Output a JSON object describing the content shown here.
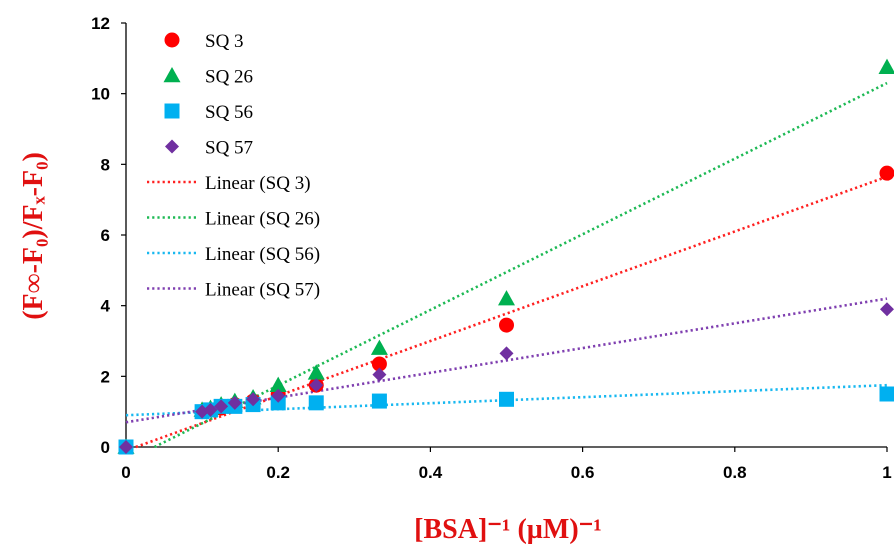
{
  "chart_data": {
    "type": "scatter",
    "title": "",
    "xlabel": "[BSA]⁻¹  (µM)⁻¹",
    "ylabel": "(F∞-F₀)/Fₓ-F₀)",
    "xlim": [
      0,
      1
    ],
    "ylim": [
      0,
      12
    ],
    "x_ticks": [
      "0",
      "0.2",
      "0.4",
      "0.6",
      "0.8",
      "1"
    ],
    "y_ticks": [
      "0",
      "2",
      "4",
      "6",
      "8",
      "10",
      "12"
    ],
    "grid": false,
    "legend_position": "top-left",
    "series": [
      {
        "name": "SQ 3",
        "marker": "circle",
        "color": "#ff0000",
        "points": [
          [
            0,
            0
          ],
          [
            0.1,
            1.0
          ],
          [
            0.111,
            1.05
          ],
          [
            0.125,
            1.1
          ],
          [
            0.143,
            1.2
          ],
          [
            0.167,
            1.3
          ],
          [
            0.2,
            1.5
          ],
          [
            0.25,
            1.75
          ],
          [
            0.333,
            2.35
          ],
          [
            0.5,
            3.45
          ],
          [
            1,
            7.75
          ]
        ],
        "trend_label": "Linear (SQ 3)",
        "trend": [
          [
            0,
            -0.1
          ],
          [
            1,
            7.65
          ]
        ],
        "trend_color": "#ff2020"
      },
      {
        "name": "SQ 26",
        "marker": "triangle",
        "color": "#00b050",
        "points": [
          [
            0,
            0
          ],
          [
            0.1,
            1.05
          ],
          [
            0.111,
            1.1
          ],
          [
            0.125,
            1.2
          ],
          [
            0.143,
            1.3
          ],
          [
            0.167,
            1.4
          ],
          [
            0.2,
            1.75
          ],
          [
            0.25,
            2.1
          ],
          [
            0.333,
            2.8
          ],
          [
            0.5,
            4.2
          ],
          [
            1,
            10.75
          ]
        ],
        "trend_label": "Linear (SQ 26)",
        "trend": [
          [
            0,
            -0.4
          ],
          [
            1,
            10.3
          ]
        ],
        "trend_color": "#1db954"
      },
      {
        "name": "SQ 56",
        "marker": "square",
        "color": "#00b0f0",
        "points": [
          [
            0,
            0
          ],
          [
            0.1,
            1.0
          ],
          [
            0.111,
            1.05
          ],
          [
            0.125,
            1.15
          ],
          [
            0.143,
            1.15
          ],
          [
            0.167,
            1.2
          ],
          [
            0.2,
            1.25
          ],
          [
            0.25,
            1.25
          ],
          [
            0.333,
            1.3
          ],
          [
            0.5,
            1.35
          ],
          [
            1,
            1.5
          ]
        ],
        "trend_label": "Linear (SQ 56)",
        "trend": [
          [
            0,
            0.9
          ],
          [
            1,
            1.75
          ]
        ],
        "trend_color": "#18b8f0"
      },
      {
        "name": "SQ 57",
        "marker": "diamond",
        "color": "#7030a0",
        "points": [
          [
            0,
            0
          ],
          [
            0.1,
            1.0
          ],
          [
            0.111,
            1.05
          ],
          [
            0.125,
            1.15
          ],
          [
            0.143,
            1.25
          ],
          [
            0.167,
            1.35
          ],
          [
            0.2,
            1.45
          ],
          [
            0.25,
            1.75
          ],
          [
            0.333,
            2.05
          ],
          [
            0.5,
            2.65
          ],
          [
            1,
            3.9
          ]
        ],
        "trend_label": "Linear (SQ 57)",
        "trend": [
          [
            0,
            0.7
          ],
          [
            1,
            4.2
          ]
        ],
        "trend_color": "#7f3fb0"
      }
    ]
  }
}
